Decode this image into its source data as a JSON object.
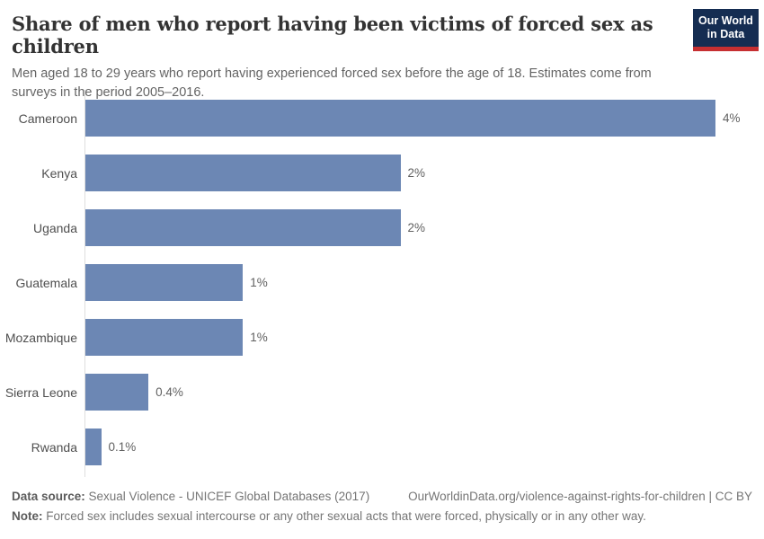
{
  "header": {
    "title": "Share of men who report having been victims of forced sex as children",
    "subtitle": "Men aged 18 to 29 years who report having experienced forced sex before the age of 18. Estimates come from surveys in the period 2005–2016."
  },
  "logo": {
    "line1": "Our World",
    "line2": "in Data",
    "bg_color": "#152d52",
    "stripe_color": "#c62f31"
  },
  "chart_data": {
    "type": "bar",
    "orientation": "horizontal",
    "title": "Share of men who report having been victims of forced sex as children",
    "categories": [
      "Cameroon",
      "Kenya",
      "Uganda",
      "Guatemala",
      "Mozambique",
      "Sierra Leone",
      "Rwanda"
    ],
    "values": [
      4,
      2,
      2,
      1,
      1,
      0.4,
      0.1
    ],
    "value_labels": [
      "4%",
      "2%",
      "2%",
      "1%",
      "1%",
      "0.4%",
      "0.1%"
    ],
    "xlim": [
      0,
      4
    ],
    "xlabel": "",
    "ylabel": "",
    "grid": false,
    "legend": false,
    "bar_color": "#6c87b4",
    "axis_line_color": "#dedede"
  },
  "footer": {
    "datasource_label": "Data source:",
    "datasource_text": " Sexual Violence - UNICEF Global Databases (2017)",
    "citation": "OurWorldinData.org/violence-against-rights-for-children | CC BY",
    "note_label": "Note:",
    "note_text": " Forced sex includes sexual intercourse or any other sexual acts that were forced, physically or in any other way."
  }
}
